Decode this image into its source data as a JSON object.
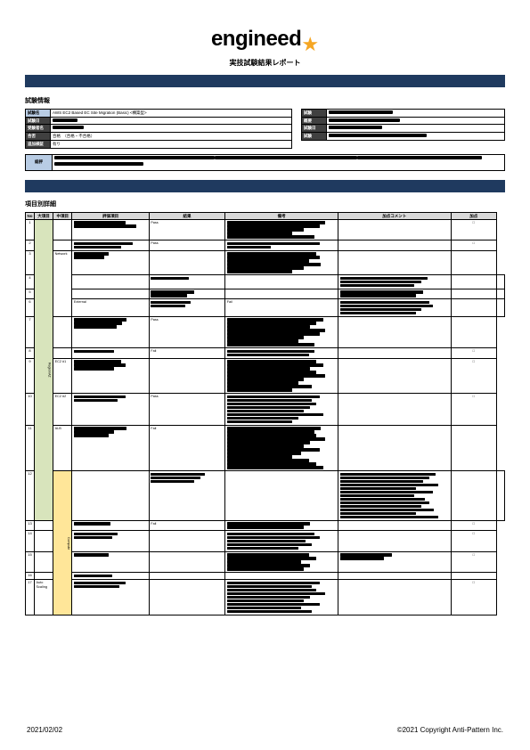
{
  "header": {
    "logo": "engineed",
    "subtitle": "実技試験結果レポート"
  },
  "section1_label": "試験情報",
  "info_left": [
    {
      "label": "試験名",
      "value": "AWS EC2 Based EC Site Migration (Basic) <構築型>"
    },
    {
      "label": "試験日",
      "redact_w": 28
    },
    {
      "label": "受験者名",
      "redact_w": 35
    },
    {
      "label": "合否",
      "value": "合格　（合格・不合格）"
    },
    {
      "label": "追加検証",
      "value": "有り"
    }
  ],
  "info_right": [
    {
      "label": "試験",
      "redact_w": 72
    },
    {
      "label": "概要",
      "redact_w": 80
    },
    {
      "label": "試験日",
      "redact_w": 60
    },
    {
      "label": "試験",
      "redact_w": 110
    }
  ],
  "comment_label": "総評",
  "comment_lines": [
    180,
    160,
    140,
    100
  ],
  "section2_label": "項目別詳細",
  "colors": {
    "navy": "#1f3a5f",
    "green": "#d8e4bc",
    "yellow": "#ffe699",
    "blue_lbl": "#b8cce4",
    "star": "#f5a623"
  },
  "columns": [
    "No",
    "大項目",
    "中項目",
    "評価項目",
    "結果",
    "備考",
    "加点コメント",
    "加点"
  ],
  "rows": [
    {
      "no": "1",
      "cat1": "Region/AZ",
      "cat1_color": "green",
      "cat1_span": 12,
      "cat2": "",
      "item_bars": [
        70,
        85
      ],
      "res": "Pass",
      "detail_bars": [
        90,
        85,
        70,
        60,
        80
      ],
      "bonus_bars": [],
      "chk": "□"
    },
    {
      "no": "2",
      "cat2": "",
      "item_bars": [
        80,
        65
      ],
      "res": "Pass",
      "detail_bars": [
        85,
        40
      ],
      "bonus_bars": [],
      "chk": "□"
    },
    {
      "no": "3",
      "cat2": "Network",
      "cat2_span": 4,
      "item_bars": [
        48,
        42
      ],
      "res": "",
      "detail_bars": [
        82,
        85,
        75,
        86,
        70,
        60
      ],
      "bonus_bars": [],
      "chk": ""
    },
    {
      "no": "4",
      "cat2": "",
      "item_bars": [
        52
      ],
      "res": "",
      "detail_bars": [
        80,
        75,
        68
      ],
      "bonus_bars": [],
      "chk": ""
    },
    {
      "no": "5",
      "cat2": "",
      "item_bars": [
        60,
        50
      ],
      "res": "",
      "detail_bars": [
        76,
        70
      ],
      "bonus_bars": [],
      "chk": ""
    },
    {
      "no": "6",
      "cat2": "External",
      "item_bars": [
        55,
        48
      ],
      "res": "Fail",
      "detail_bars": [
        82,
        85,
        75,
        70
      ],
      "bonus_bars": [],
      "chk": ""
    },
    {
      "no": "7",
      "cat2": "",
      "item_bars": [
        72,
        66,
        58
      ],
      "res": "Pass",
      "detail_bars": [
        88,
        82,
        76,
        90,
        85,
        70,
        65,
        80
      ],
      "bonus_bars": [],
      "chk": ""
    },
    {
      "no": "8",
      "cat2": "",
      "item_bars": [
        55
      ],
      "res": "Fail",
      "detail_bars": [
        80,
        75
      ],
      "bonus_bars": [],
      "chk": "□"
    },
    {
      "no": "9",
      "cat2": "EC2 #1",
      "item_bars": [
        65,
        70,
        55
      ],
      "res": "",
      "detail_bars": [
        82,
        88,
        76,
        82,
        90,
        70,
        65,
        78,
        60
      ],
      "bonus_bars": [],
      "chk": "□"
    },
    {
      "no": "10",
      "cat2": "EC2 #2",
      "item_bars": [
        70,
        60
      ],
      "res": "Pass",
      "detail_bars": [
        85,
        78,
        82,
        76,
        70,
        88,
        65,
        60
      ],
      "bonus_bars": [],
      "chk": "□"
    },
    {
      "no": "11",
      "cat2": "ALB",
      "item_bars": [
        72,
        55,
        48
      ],
      "res": "Fail",
      "detail_bars": [
        86,
        80,
        82,
        90,
        76,
        70,
        85,
        68,
        60,
        75,
        82,
        88
      ],
      "bonus_bars": [],
      "chk": ""
    },
    {
      "no": "12",
      "cat1": "Compute",
      "cat1_color": "yellow",
      "cat1_span": 6,
      "cat2": "",
      "item_bars": [
        74,
        68,
        60
      ],
      "res": "",
      "detail_bars": [
        88,
        82,
        76,
        90,
        70,
        85,
        68,
        78,
        82,
        75,
        86,
        70,
        90
      ],
      "bonus_bars": [],
      "chk": ""
    },
    {
      "no": "13",
      "cat2": "",
      "item_bars": [
        50
      ],
      "res": "Fail",
      "detail_bars": [
        76,
        70
      ],
      "bonus_bars": [],
      "chk": "□"
    },
    {
      "no": "14",
      "cat2": "",
      "item_bars": [
        60,
        52
      ],
      "res": "",
      "detail_bars": [
        80,
        85,
        72,
        78,
        65
      ],
      "bonus_bars": [],
      "chk": "□"
    },
    {
      "no": "15",
      "cat2": "",
      "item_bars": [
        48
      ],
      "res": "",
      "detail_bars": [
        75,
        82,
        68,
        76,
        70
      ],
      "bonus_bars": [
        48,
        40
      ],
      "chk": "□"
    },
    {
      "no": "16",
      "cat2": "",
      "item_bars": [
        52
      ],
      "res": "",
      "detail_bars": [],
      "bonus_bars": [],
      "chk": ""
    },
    {
      "no": "17",
      "cat2": "Auto Scaling",
      "item_bars": [
        70,
        62
      ],
      "res": "",
      "detail_bars": [
        85,
        78,
        82,
        90,
        76,
        70,
        85,
        68,
        78
      ],
      "bonus_bars": [],
      "chk": "□"
    }
  ],
  "footer": {
    "date": "2021/02/02",
    "copyright": "©2021 Copyright Anti-Pattern Inc."
  }
}
